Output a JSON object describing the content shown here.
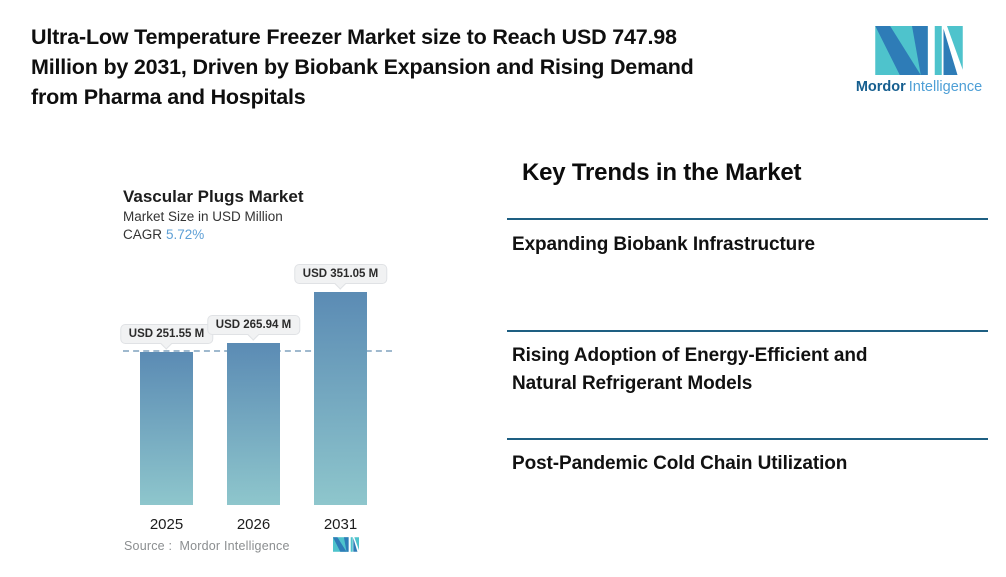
{
  "colors": {
    "separator": "#1E5F82",
    "cagr": "#5FA0D6",
    "bar_top": "#5B8BB4",
    "bar_bottom": "#8EC6CC",
    "dashed_line": "#9FB9CE",
    "logo_teal": "#4EC3CC",
    "logo_blue": "#2E7CB7",
    "brand_dark": "#155E8F",
    "brand_light": "#4E9FD6"
  },
  "header": {
    "title_lines": [
      "Ultra-Low Temperature Freezer Market size to Reach USD 747.98",
      "Million by 2031, Driven by Biobank Expansion and Rising Demand",
      "from Pharma and Hospitals"
    ]
  },
  "logo": {
    "brand_bold": "Mordor",
    "brand_light": "Intelligence"
  },
  "chart": {
    "title": "Vascular Plugs Market",
    "subtitle": "Market Size in USD Million",
    "cagr_label": "CAGR",
    "cagr_value": "5.72%",
    "source": "Source :  Mordor Intelligence"
  },
  "chart_data": {
    "type": "bar",
    "title": "Vascular Plugs Market",
    "subtitle": "Market Size in USD Million",
    "cagr_percent": 5.72,
    "categories": [
      "2025",
      "2026",
      "2031"
    ],
    "values": [
      251.55,
      265.94,
      351.05
    ],
    "bar_labels": [
      "USD 251.55 M",
      "USD 265.94 M",
      "USD 351.05 M"
    ],
    "unit": "USD Million",
    "ylim": [
      0,
      400
    ],
    "grid": false,
    "reference_line": 251.55,
    "legend": "none",
    "source": "Source :  Mordor Intelligence"
  },
  "trends": {
    "heading": "Key Trends in the Market",
    "items": [
      {
        "lines": [
          "Expanding Biobank Infrastructure"
        ]
      },
      {
        "lines": [
          "Rising Adoption of Energy-Efficient and",
          "Natural Refrigerant Models"
        ]
      },
      {
        "lines": [
          "Post-Pandemic Cold Chain Utilization"
        ]
      }
    ]
  }
}
